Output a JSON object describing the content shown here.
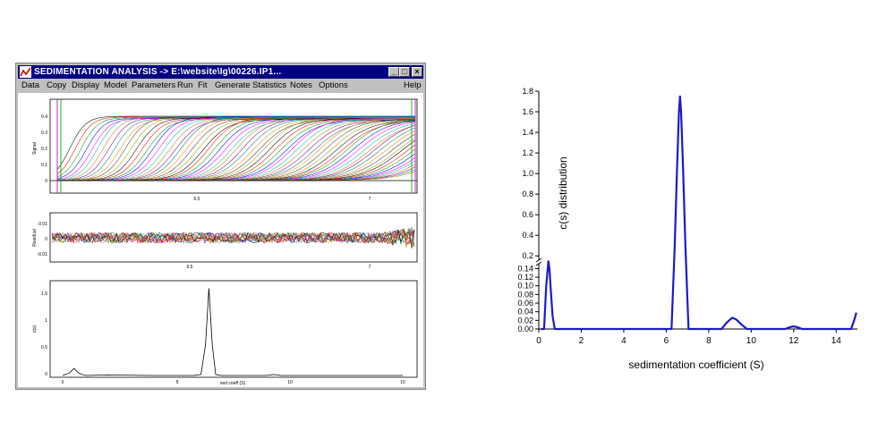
{
  "window": {
    "title": "SEDIMENTATION ANALYSIS -> E:\\website\\Ig\\00226.IP1...",
    "buttons": {
      "minimize": "_",
      "maximize": "□",
      "close": "×"
    }
  },
  "menu": [
    {
      "label": "Data"
    },
    {
      "label": "Copy"
    },
    {
      "label": "Display"
    },
    {
      "label": "Model"
    },
    {
      "label": "Parameters"
    },
    {
      "label": "Run"
    },
    {
      "label": "Fit"
    },
    {
      "label": "Generate"
    },
    {
      "label": "Statistics"
    },
    {
      "label": "Notes"
    },
    {
      "label": "Options"
    },
    {
      "label": "Help"
    }
  ],
  "panels": {
    "data": {
      "ylabel": "Signal",
      "yticks": [
        "0.4",
        "0.3",
        "0.2",
        "0.1",
        "0"
      ],
      "xticks": [
        "6.5",
        "7"
      ]
    },
    "residuals": {
      "ylabel": "Residual",
      "yticks": [
        "0.01",
        "0",
        "-0.01"
      ],
      "xticks": [
        "6.5",
        "7"
      ]
    },
    "distribution": {
      "ylabel": "c(s)",
      "yticks": [
        "1.5",
        "1",
        "0.5",
        "0"
      ],
      "xticks": [
        "0",
        "5",
        "10",
        "15"
      ],
      "xlabel": "sed coeff (S)"
    }
  },
  "chart_data": {
    "type": "line",
    "xlabel": "sedimentation coefficient (S)",
    "ylabel": "c(s) distribution",
    "xlim": [
      0,
      15
    ],
    "x_ticks": [
      "0",
      "2",
      "4",
      "6",
      "8",
      "10",
      "12",
      "14"
    ],
    "y_ticks_lower": [
      "0.00",
      "0.02",
      "0.04",
      "0.06",
      "0.08",
      "0.10",
      "0.12",
      "0.14"
    ],
    "y_ticks_upper": [
      "0.2",
      "0.4",
      "0.6",
      "0.8",
      "1.0",
      "1.2",
      "1.4",
      "1.6",
      "1.8"
    ],
    "broken_y_axis": {
      "lower_range": [
        0,
        0.145
      ],
      "upper_range": [
        0.15,
        1.8
      ]
    },
    "grid": false,
    "color": "#1a1ad0",
    "series": [
      {
        "x": [
          0.1,
          0.25,
          0.35,
          0.45,
          0.5,
          0.55,
          0.65,
          0.75,
          6.25,
          6.4,
          6.5,
          6.6,
          6.65,
          6.7,
          6.8,
          6.9,
          7.05,
          8.6,
          8.85,
          9.1,
          9.3,
          9.55,
          9.8,
          11.6,
          11.8,
          12.0,
          12.2,
          12.4,
          14.7,
          14.85,
          14.95
        ],
        "y": [
          0.0,
          0.0,
          0.1,
          0.148,
          0.14,
          0.1,
          0.03,
          0.0,
          0.0,
          0.3,
          1.0,
          1.6,
          1.75,
          1.6,
          1.0,
          0.3,
          0.0,
          0.0,
          0.015,
          0.026,
          0.022,
          0.01,
          0.0,
          0.0,
          0.004,
          0.006,
          0.004,
          0.0,
          0.0,
          0.02,
          0.038
        ]
      }
    ]
  },
  "left_distribution": {
    "x": [
      0,
      0.3,
      0.5,
      0.7,
      1.0,
      2.0,
      4.0,
      5.8,
      6.1,
      6.3,
      6.45,
      6.6,
      6.75,
      7.0,
      8.0,
      9.0,
      9.3,
      9.6,
      12.0,
      15.0
    ],
    "y": [
      0,
      0.05,
      0.14,
      0.05,
      0,
      0.01,
      0,
      0,
      0.02,
      0.6,
      1.72,
      0.6,
      0.02,
      0,
      0,
      0,
      0.02,
      0,
      0,
      0
    ]
  }
}
